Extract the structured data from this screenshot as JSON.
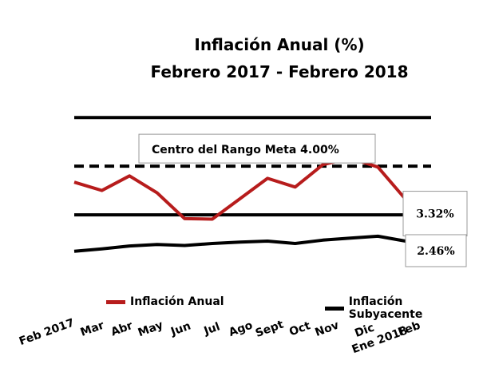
{
  "title_line1": "Inflación Anual  (%)",
  "title_line2": "Febrero 2017 - Febrero 2018",
  "chart_data": {
    "type": "line",
    "categories": [
      "Feb 2017",
      "Mar",
      "Abr",
      "May",
      "Jun",
      "Jul",
      "Ago",
      "Sept",
      "Oct",
      "Nov",
      "Dic",
      "Ene 2018",
      "Feb"
    ],
    "series": [
      {
        "name": "Inflación Anual",
        "color": "#b71c1c",
        "values": [
          3.67,
          3.5,
          3.8,
          3.45,
          2.92,
          2.91,
          3.33,
          3.75,
          3.57,
          4.03,
          4.17,
          3.98,
          3.32
        ]
      },
      {
        "name": "Inflación Subyacente",
        "color": "#000000",
        "values": [
          2.25,
          2.3,
          2.36,
          2.39,
          2.37,
          2.41,
          2.44,
          2.46,
          2.41,
          2.48,
          2.52,
          2.56,
          2.46
        ]
      }
    ],
    "reference_lines": [
      {
        "value": 5.0,
        "style": "solid"
      },
      {
        "value": 4.0,
        "style": "dashed",
        "label": "Centro del Rango Meta  4.00%"
      },
      {
        "value": 3.0,
        "style": "solid"
      }
    ],
    "end_labels": [
      "3.32%",
      "2.46%"
    ],
    "ylim": [
      2.0,
      5.2
    ],
    "grid": false,
    "legend_position": "bottom"
  }
}
